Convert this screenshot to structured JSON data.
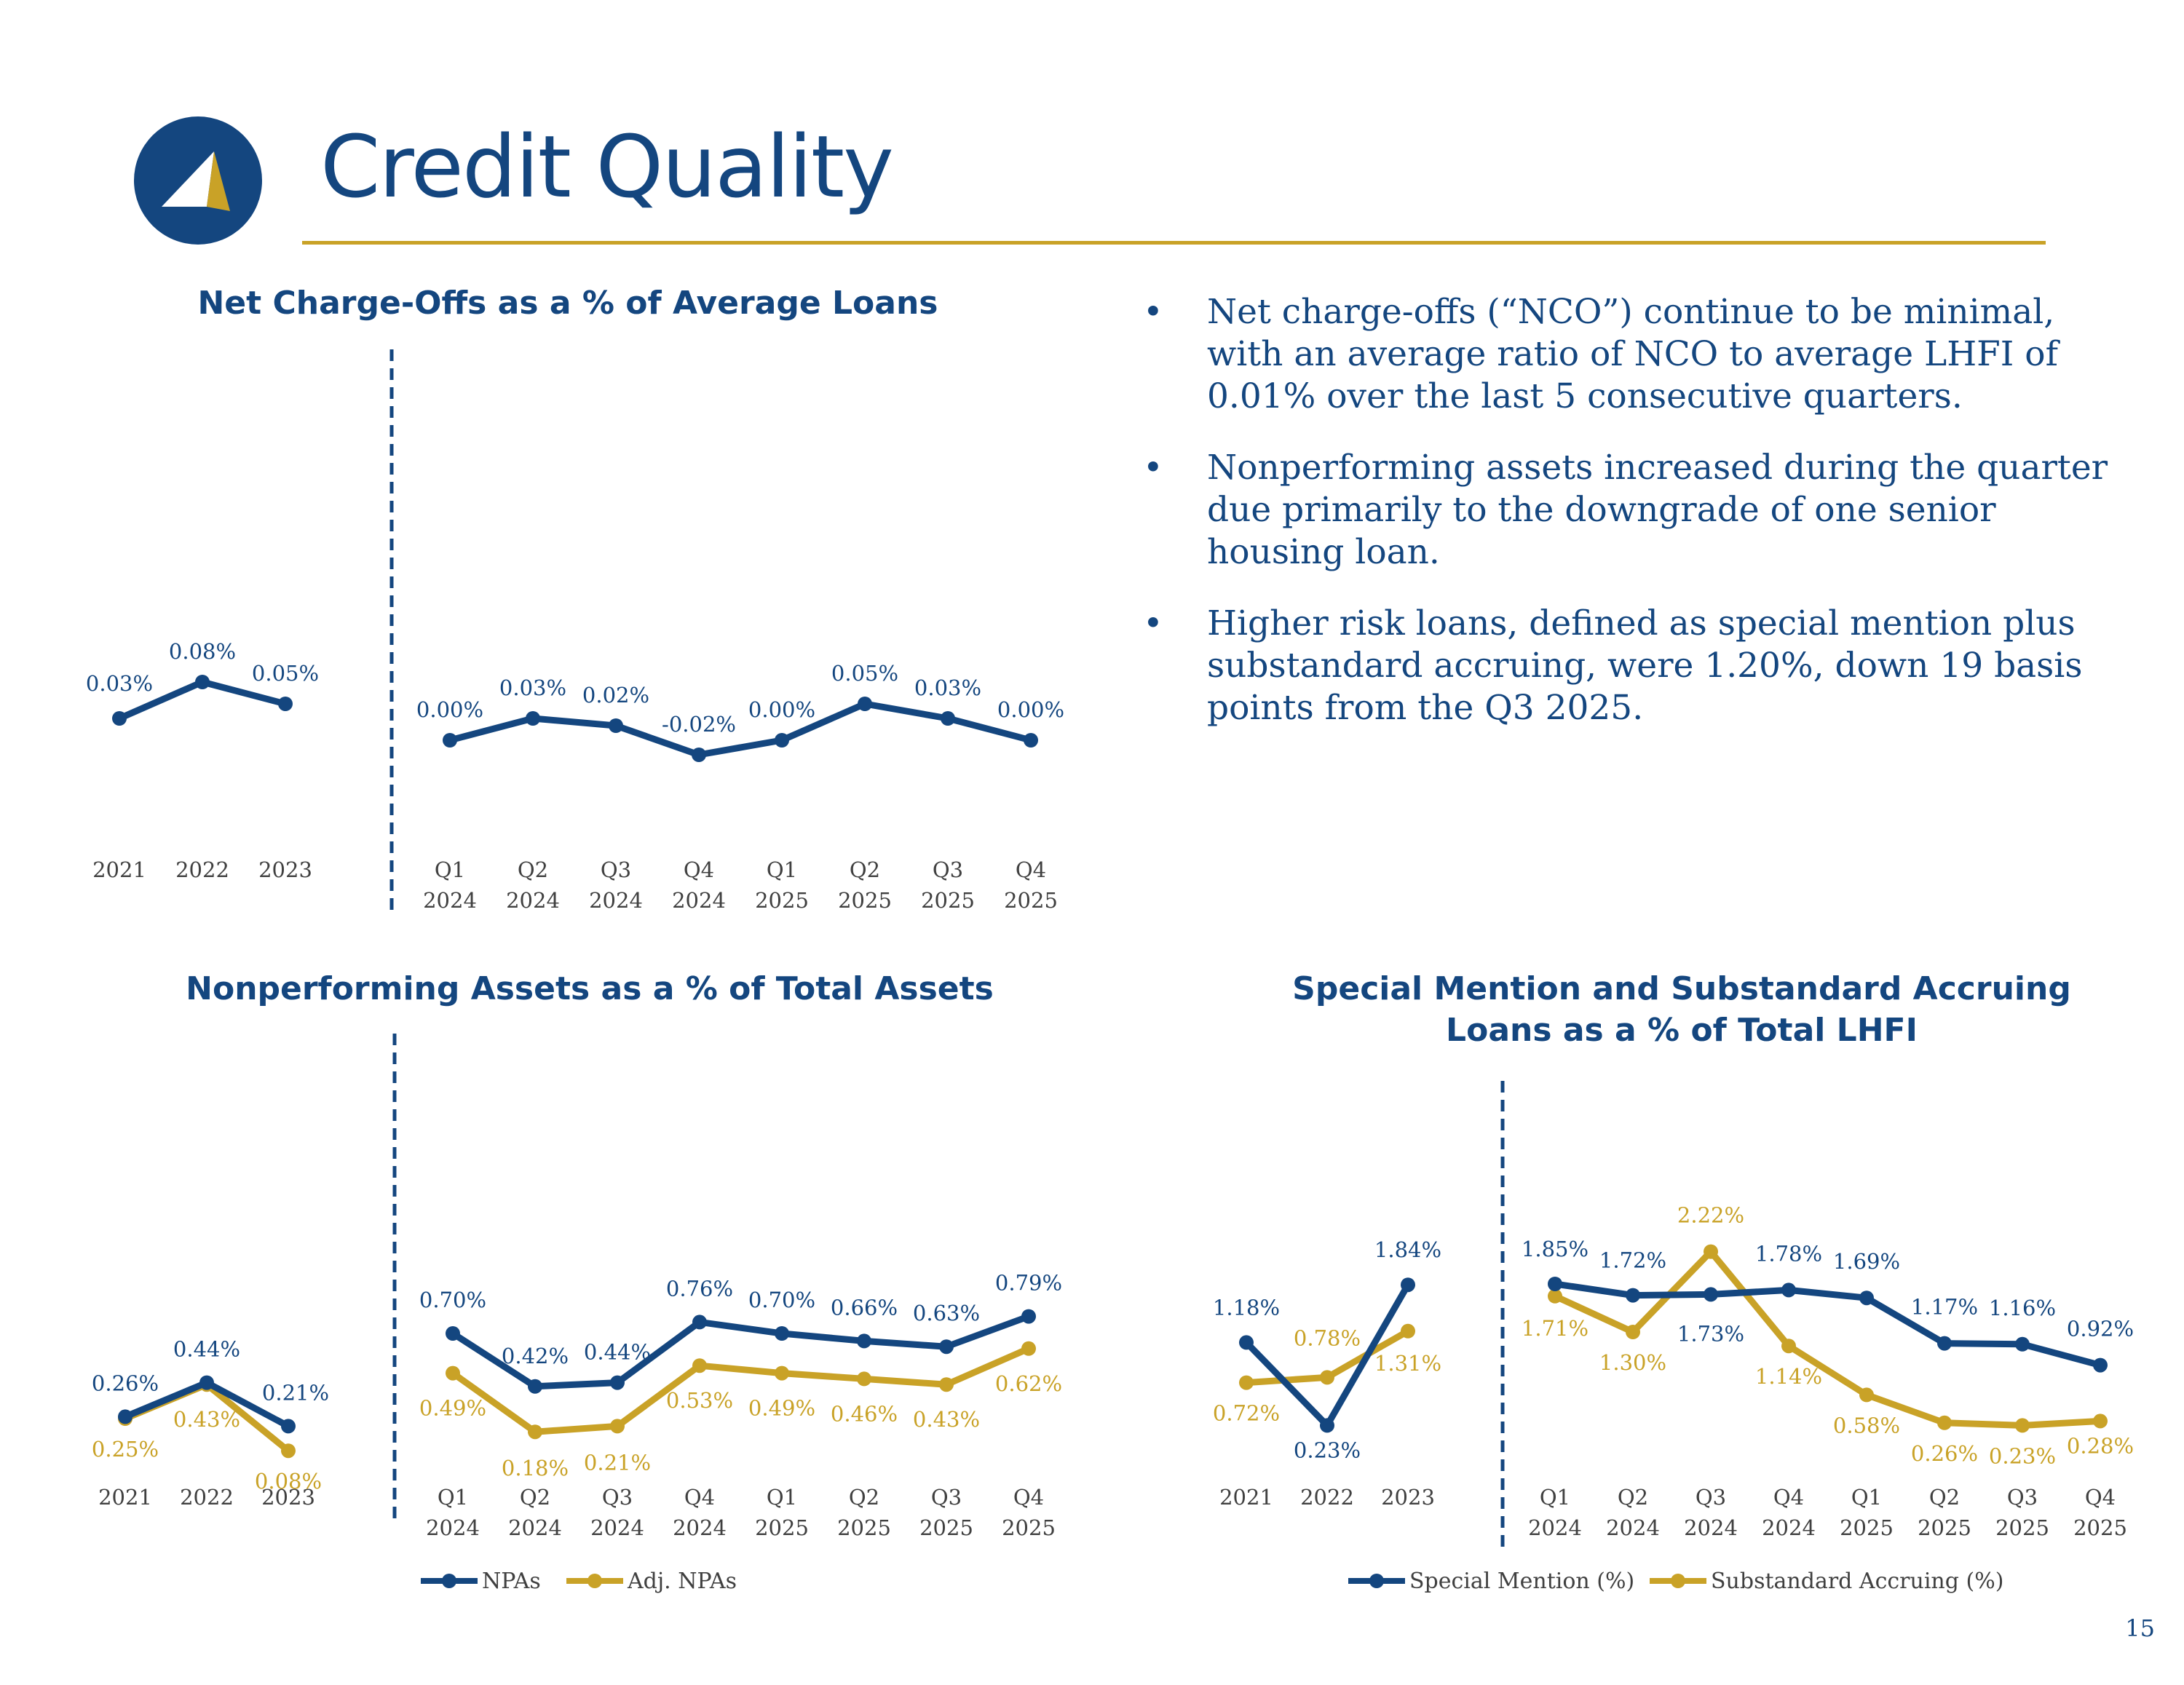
{
  "header": {
    "title": "Credit Quality",
    "page_number": "15"
  },
  "logo": {
    "icon": "arrow-compass-logo",
    "colors": {
      "circle": "#14467f",
      "arrow_light": "#ffffff",
      "arrow_gold": "#c9a227"
    }
  },
  "colors": {
    "navy": "#14467f",
    "gold": "#c9a227",
    "gray": "#404040"
  },
  "bullets": [
    "Net charge-offs (“NCO”) continue to be minimal, with an average ratio of NCO to average LHFI of 0.01% over the last 5 consecutive quarters.",
    "Nonperforming assets increased during the quarter due primarily to the downgrade of one senior housing loan.",
    "Higher risk loans, defined as special mention plus substandard accruing, were 1.20%, down 19 basis points from the Q3 2025."
  ],
  "chart_titles": {
    "nco": "Net Charge-Offs as a % of Average Loans",
    "npa": "Nonperforming Assets as a % of Total Assets",
    "sm_line1": "Special Mention and Substandard Accruing",
    "sm_line2": "Loans as a % of Total LHFI"
  },
  "chart_data": [
    {
      "id": "nco",
      "type": "line",
      "title": "Net Charge-Offs as a % of Average Loans",
      "annual": {
        "categories": [
          "2021",
          "2022",
          "2023"
        ],
        "series": [
          {
            "name": "NCO",
            "values": [
              0.03,
              0.08,
              0.05
            ],
            "labels": [
              "0.03%",
              "0.08%",
              "0.05%"
            ]
          }
        ]
      },
      "quarterly": {
        "categories": [
          "Q1 2024",
          "Q2 2024",
          "Q3 2024",
          "Q4 2024",
          "Q1 2025",
          "Q2 2025",
          "Q3 2025",
          "Q4 2025"
        ],
        "series": [
          {
            "name": "NCO",
            "values": [
              0.0,
              0.03,
              0.02,
              -0.02,
              0.0,
              0.05,
              0.03,
              0.0
            ],
            "labels": [
              "0.00%",
              "0.03%",
              "0.02%",
              "-0.02%",
              "0.00%",
              "0.05%",
              "0.03%",
              "0.00%"
            ]
          }
        ]
      },
      "legend": []
    },
    {
      "id": "npa",
      "type": "line",
      "title": "Nonperforming Assets as a % of Total Assets",
      "annual": {
        "categories": [
          "2021",
          "2022",
          "2023"
        ],
        "series": [
          {
            "name": "NPAs",
            "values": [
              0.26,
              0.44,
              0.21
            ],
            "labels": [
              "0.26%",
              "0.44%",
              "0.21%"
            ]
          },
          {
            "name": "Adj. NPAs",
            "values": [
              0.25,
              0.43,
              0.08
            ],
            "labels": [
              "0.25%",
              "0.43%",
              "0.08%"
            ]
          }
        ]
      },
      "quarterly": {
        "categories": [
          "Q1 2024",
          "Q2 2024",
          "Q3 2024",
          "Q4 2024",
          "Q1 2025",
          "Q2 2025",
          "Q3 2025",
          "Q4 2025"
        ],
        "series": [
          {
            "name": "NPAs",
            "values": [
              0.7,
              0.42,
              0.44,
              0.76,
              0.7,
              0.66,
              0.63,
              0.79
            ],
            "labels": [
              "0.70%",
              "0.42%",
              "0.44%",
              "0.76%",
              "0.70%",
              "0.66%",
              "0.63%",
              "0.79%"
            ]
          },
          {
            "name": "Adj. NPAs",
            "values": [
              0.49,
              0.18,
              0.21,
              0.53,
              0.49,
              0.46,
              0.43,
              0.62
            ],
            "labels": [
              "0.49%",
              "0.18%",
              "0.21%",
              "0.53%",
              "0.49%",
              "0.46%",
              "0.43%",
              "0.62%"
            ]
          }
        ]
      },
      "legend": [
        "NPAs",
        "Adj. NPAs"
      ]
    },
    {
      "id": "sm",
      "type": "line",
      "title": "Special Mention and Substandard Accruing Loans as a % of Total LHFI",
      "annual": {
        "categories": [
          "2021",
          "2022",
          "2023"
        ],
        "series": [
          {
            "name": "Special Mention (%)",
            "values": [
              1.18,
              0.23,
              1.84
            ],
            "labels": [
              "1.18%",
              "0.23%",
              "1.84%"
            ]
          },
          {
            "name": "Substandard Accruing (%)",
            "values": [
              0.72,
              0.78,
              1.31
            ],
            "labels": [
              "0.72%",
              "0.78%",
              "1.31%"
            ]
          }
        ]
      },
      "quarterly": {
        "categories": [
          "Q1 2024",
          "Q2 2024",
          "Q3 2024",
          "Q4 2024",
          "Q1 2025",
          "Q2 2025",
          "Q3 2025",
          "Q4 2025"
        ],
        "series": [
          {
            "name": "Special Mention (%)",
            "values": [
              1.85,
              1.72,
              1.73,
              1.78,
              1.69,
              1.17,
              1.16,
              0.92
            ],
            "labels": [
              "1.85%",
              "1.72%",
              "1.73%",
              "1.78%",
              "1.69%",
              "1.17%",
              "1.16%",
              "0.92%"
            ]
          },
          {
            "name": "Substandard Accruing (%)",
            "values": [
              1.71,
              1.3,
              2.22,
              1.14,
              0.58,
              0.26,
              0.23,
              0.28
            ],
            "labels": [
              "1.71%",
              "1.30%",
              "2.22%",
              "1.14%",
              "0.58%",
              "0.26%",
              "0.23%",
              "0.28%"
            ]
          }
        ]
      },
      "legend": [
        "Special Mention (%)",
        "Substandard Accruing (%)"
      ]
    }
  ]
}
